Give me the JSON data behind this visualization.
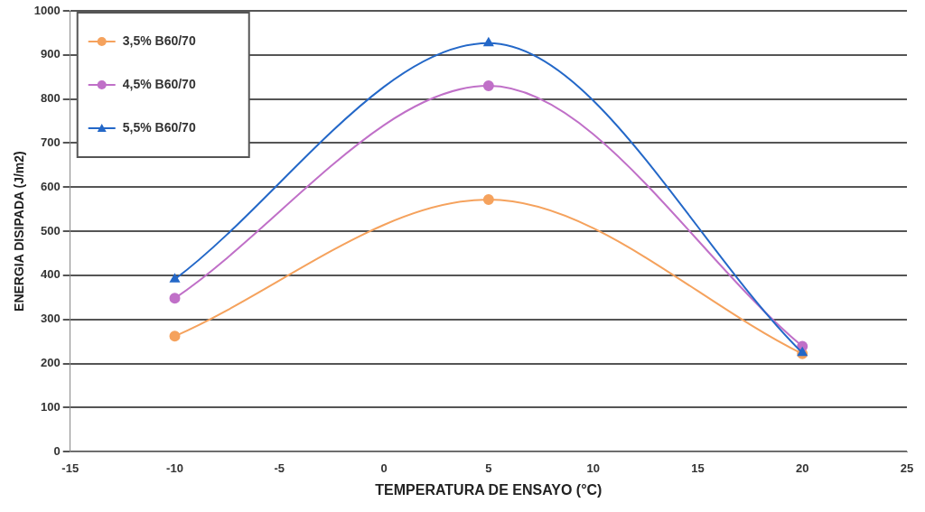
{
  "chart_data": {
    "type": "line",
    "xlabel": "TEMPERATURA DE ENSAYO (°C)",
    "ylabel": "ENERGIA DISIPADA (J/m2)",
    "x": [
      -10,
      5,
      20
    ],
    "series": [
      {
        "name": "3,5% B60/70",
        "color": "#f5a25d",
        "marker": "circle",
        "values": [
          262,
          572,
          222
        ]
      },
      {
        "name": "4,5% B60/70",
        "color": "#c070c8",
        "marker": "circle",
        "values": [
          348,
          830,
          239
        ]
      },
      {
        "name": "5,5% B60/70",
        "color": "#2468c8",
        "marker": "triangle",
        "values": [
          391,
          927,
          224
        ]
      }
    ],
    "xlim": [
      -15,
      25
    ],
    "xticks": [
      -15,
      -10,
      -5,
      0,
      5,
      10,
      15,
      20,
      25
    ],
    "ylim": [
      0,
      1000
    ],
    "yticks": [
      0,
      100,
      200,
      300,
      400,
      500,
      600,
      700,
      800,
      900,
      1000
    ],
    "grid": "y",
    "legend": "top left"
  }
}
